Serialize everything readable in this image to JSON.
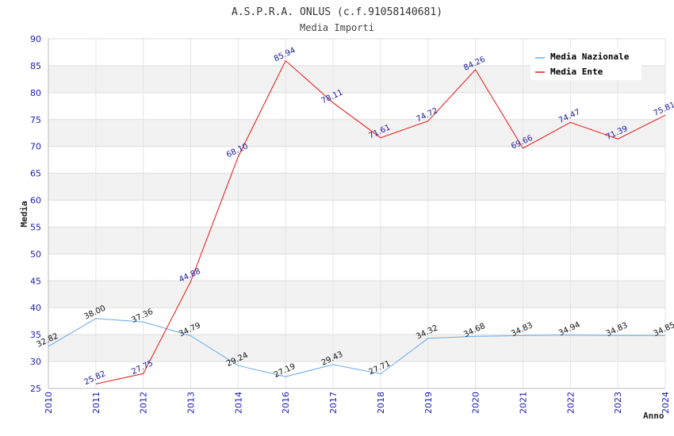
{
  "chart_data": {
    "type": "line",
    "title": "A.S.P.R.A. ONLUS (c.f.91058140681)",
    "subtitle": "Media Importi",
    "xlabel": "Anno",
    "ylabel": "Media",
    "categories": [
      "2010",
      "2011",
      "2012",
      "2013",
      "2014",
      "2016",
      "2017",
      "2018",
      "2019",
      "2020",
      "2021",
      "2022",
      "2023",
      "2024"
    ],
    "ylim": [
      25,
      90
    ],
    "yticks": [
      25,
      30,
      35,
      40,
      45,
      50,
      55,
      60,
      65,
      70,
      75,
      80,
      85,
      90
    ],
    "grid": true,
    "legend_position": "top-right",
    "series": [
      {
        "name": "Media Nazionale",
        "color": "#66aaee",
        "values": [
          32.82,
          38.0,
          37.36,
          34.79,
          29.24,
          27.19,
          29.43,
          27.71,
          34.32,
          34.68,
          34.83,
          34.94,
          34.83,
          34.85
        ],
        "labels": [
          "32.82",
          "38.00",
          "37.36",
          "34.79",
          "29.24",
          "27.19",
          "29.43",
          "27.71",
          "34.32",
          "34.68",
          "34.83",
          "34.94",
          "34.83",
          "34.85"
        ]
      },
      {
        "name": "Media Ente",
        "color": "#ee1111",
        "values": [
          null,
          25.82,
          27.75,
          44.88,
          68.1,
          85.94,
          78.11,
          71.61,
          74.72,
          84.26,
          69.66,
          74.47,
          71.39,
          75.81
        ],
        "labels": [
          "",
          "25.82",
          "27.75",
          "44.88",
          "68.10",
          "85.94",
          "78.11",
          "71.61",
          "74.72",
          "84.26",
          "69.66",
          "74.47",
          "71.39",
          "75.81"
        ]
      }
    ]
  }
}
